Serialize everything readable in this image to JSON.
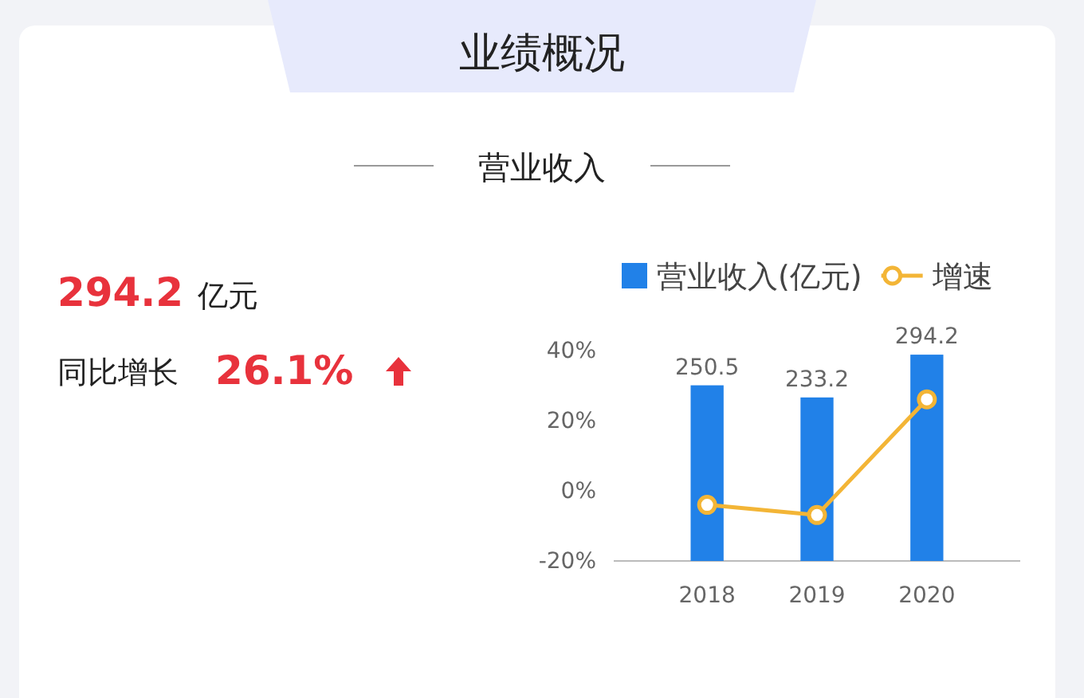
{
  "chart_data": {
    "type": "bar",
    "title": "业绩概况",
    "subtitle": "营业收入",
    "annotations": [
      "294.2",
      "亿元",
      "同比增长",
      "26.1%"
    ],
    "categories": [
      "2018",
      "2019",
      "2020"
    ],
    "series": [
      {
        "name": "营业收入(亿元)",
        "color": "#2181e8",
        "values": [
          250.5,
          233.2,
          294.2
        ],
        "axis": "y2",
        "value_labels": [
          "250.5",
          "233.2",
          "294.2"
        ]
      },
      {
        "name": "增速",
        "type": "line",
        "color": "#f3b536",
        "values": [
          -4,
          -6.9,
          26.1
        ],
        "marker": "circle"
      }
    ],
    "ylim": [
      -20,
      40
    ],
    "yticks": [
      {
        "value": -20,
        "label": "-20%"
      },
      {
        "value": 0,
        "label": "0%"
      },
      {
        "value": 20,
        "label": "20%"
      },
      {
        "value": 40,
        "label": "40%"
      }
    ],
    "y2lim": [
      0,
      300
    ],
    "legend": "top right"
  }
}
